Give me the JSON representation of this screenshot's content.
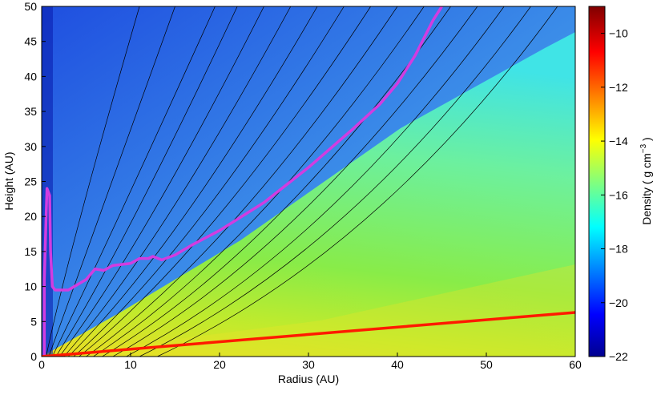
{
  "chart_data": {
    "type": "contour",
    "x_label": "Radius (AU)",
    "y_label": "Height (AU)",
    "xlim": [
      0,
      60
    ],
    "xticks": [
      0,
      10,
      20,
      30,
      40,
      50,
      60
    ],
    "ylim": [
      0,
      50
    ],
    "yticks": [
      0,
      5,
      10,
      15,
      20,
      25,
      30,
      35,
      40,
      45,
      50
    ],
    "colorbar": {
      "label": "Density ( g cm",
      "label_superscript": "−3",
      "label_suffix": " )",
      "clim": [
        -22,
        -9
      ],
      "ticks": [
        {
          "value": -22,
          "label": "−22"
        },
        {
          "value": -20,
          "label": "−20"
        },
        {
          "value": -18,
          "label": "−18"
        },
        {
          "value": -16,
          "label": "−16"
        },
        {
          "value": -14,
          "label": "−14"
        },
        {
          "value": -12,
          "label": "−12"
        },
        {
          "value": -10,
          "label": "−10"
        }
      ]
    },
    "curves": [
      {
        "color": "#d23ce0",
        "x": [
          0.3,
          0.3,
          0.5,
          0.6,
          0.9,
          1.0,
          1.2,
          1.5,
          3,
          5,
          6,
          7,
          8,
          10,
          11,
          12,
          12.5,
          13.5,
          15,
          17,
          20,
          25,
          30,
          35,
          38,
          40,
          42,
          44,
          45
        ],
        "y": [
          0,
          11,
          20,
          24,
          23,
          15,
          10,
          9.5,
          9.5,
          11,
          12.5,
          12.3,
          13,
          13.3,
          14,
          14,
          14.3,
          13.8,
          14.5,
          16,
          18,
          22,
          27,
          32.5,
          36,
          39,
          43,
          48,
          50
        ]
      },
      {
        "color": "#ff1a00",
        "x": [
          0,
          60
        ],
        "y": [
          0,
          6.3
        ]
      }
    ],
    "streamlines": [
      {
        "x": [
          0.5,
          3,
          11
        ],
        "y": [
          0,
          15,
          50
        ]
      },
      {
        "x": [
          0.8,
          5,
          15
        ],
        "y": [
          0,
          15,
          50
        ]
      },
      {
        "x": [
          1.2,
          7,
          19.5
        ],
        "y": [
          0,
          15,
          50
        ]
      },
      {
        "x": [
          1.6,
          9,
          22
        ],
        "y": [
          0,
          15,
          50
        ]
      },
      {
        "x": [
          2,
          11,
          25
        ],
        "y": [
          0,
          15,
          50
        ]
      },
      {
        "x": [
          2.5,
          13,
          28
        ],
        "y": [
          0,
          15,
          50
        ]
      },
      {
        "x": [
          3,
          15,
          31
        ],
        "y": [
          0,
          15,
          50
        ]
      },
      {
        "x": [
          3.6,
          17,
          34
        ],
        "y": [
          0,
          15,
          50
        ]
      },
      {
        "x": [
          4.2,
          19,
          37
        ],
        "y": [
          0,
          15,
          50
        ]
      },
      {
        "x": [
          5,
          21.5,
          40
        ],
        "y": [
          0,
          15,
          50
        ]
      },
      {
        "x": [
          5.8,
          24,
          43
        ],
        "y": [
          0,
          15,
          50
        ]
      },
      {
        "x": [
          6.8,
          26.5,
          46
        ],
        "y": [
          0,
          15,
          50
        ]
      },
      {
        "x": [
          8,
          29,
          49
        ],
        "y": [
          0,
          15,
          50
        ]
      },
      {
        "x": [
          9.5,
          32,
          52
        ],
        "y": [
          0,
          15,
          50
        ]
      },
      {
        "x": [
          11,
          35,
          55
        ],
        "y": [
          0,
          15,
          50
        ]
      },
      {
        "x": [
          13,
          38,
          58
        ],
        "y": [
          0,
          15,
          50
        ]
      }
    ]
  }
}
